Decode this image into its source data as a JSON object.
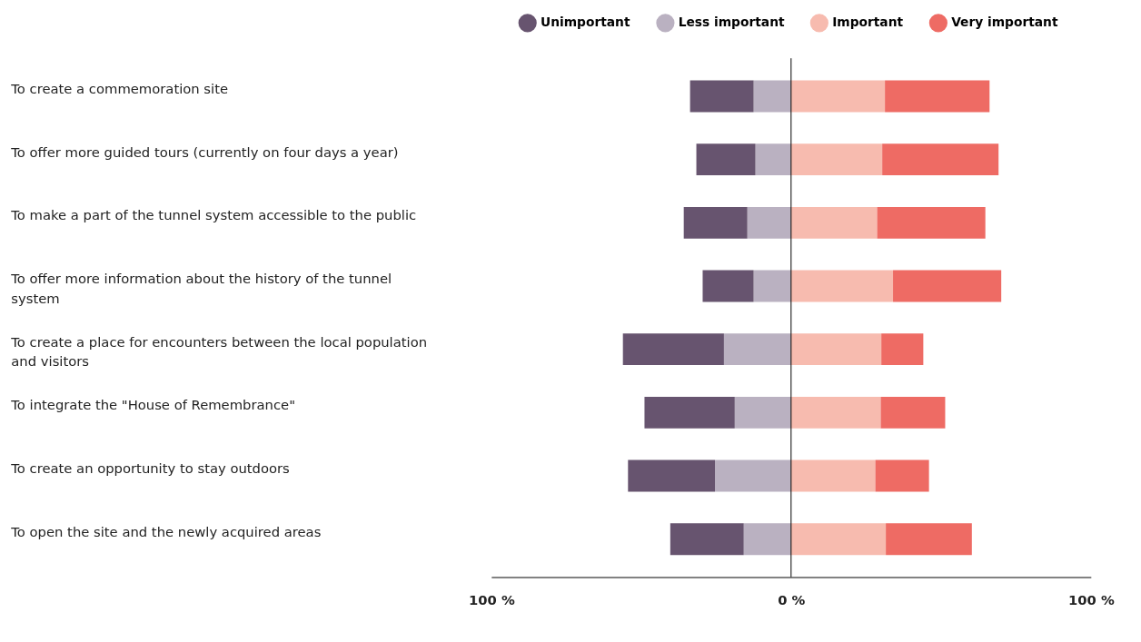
{
  "chart_data": {
    "type": "bar",
    "orientation": "horizontal",
    "stacked": true,
    "categories": [
      "To create a commemoration site",
      "To offer more guided tours (currently on four days a year)",
      "To make a part of the tunnel system accessible to the public",
      "To offer more information about the history of the tunnel system",
      "To create a place for encounters between the local population and visitors",
      "To integrate the \"House of Remembrance\"",
      "To create an opportunity to stay outdoors",
      "To open the site and the newly acquired areas"
    ],
    "series": [
      {
        "name": "Less important",
        "color": "#bab1c1",
        "values": [
          -12.5,
          -11.9,
          -14.6,
          -12.5,
          -22.4,
          -18.8,
          -25.4,
          -15.8
        ]
      },
      {
        "name": "Unimportant",
        "color": "#67546f",
        "values": [
          -21.2,
          -19.7,
          -21.2,
          -17.0,
          -33.7,
          -30.1,
          -29.0,
          -24.5
        ]
      },
      {
        "name": "Important",
        "color": "#f7bbaf",
        "values": [
          31.3,
          30.4,
          28.7,
          34.0,
          30.1,
          29.9,
          28.1,
          31.6
        ]
      },
      {
        "name": "Very important",
        "color": "#ee6b64",
        "values": [
          34.9,
          38.8,
          36.1,
          36.1,
          14.0,
          21.5,
          17.9,
          28.7
        ]
      }
    ],
    "xlim": [
      -100,
      100
    ],
    "xticks": [
      {
        "value": -100,
        "label": "100 %"
      },
      {
        "value": 0,
        "label": "0 %"
      },
      {
        "value": 100,
        "label": "100 %"
      }
    ],
    "ref_lines": [
      {
        "axis": "x",
        "value": 0,
        "color": "#000000"
      }
    ],
    "grid": false,
    "legend": "top right"
  }
}
